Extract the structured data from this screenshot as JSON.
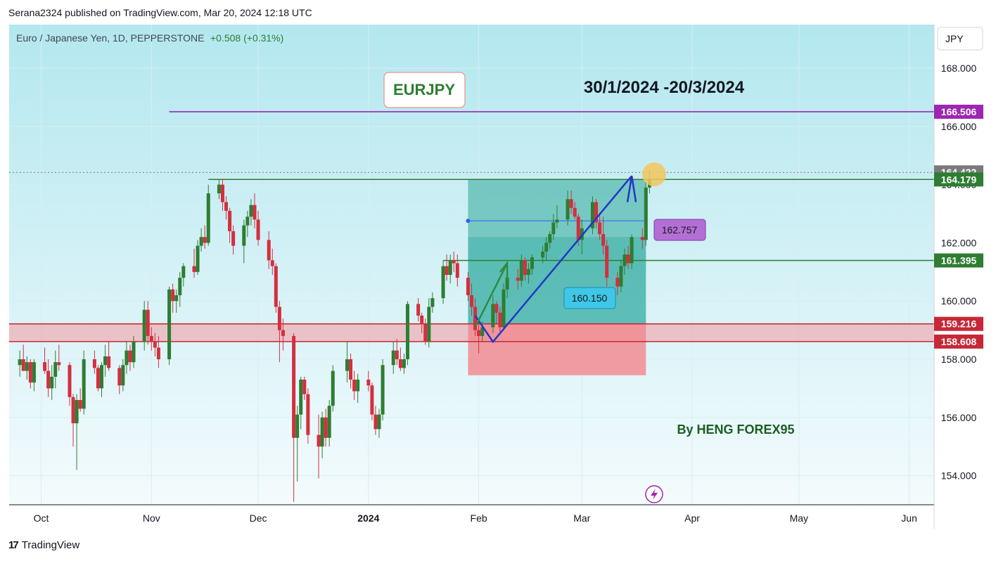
{
  "header": {
    "published": "Serana2324 published on TradingView.com, Mar 20, 2024 12:18 UTC"
  },
  "chart_header": {
    "symbol": "Euro / Japanese Yen, 1D, PEPPERSTONE",
    "change": "+0.508 (+0.31%)"
  },
  "currency_button": "JPY",
  "annotations": {
    "pair_label": "EURJPY",
    "date_range": "30/1/2024 -20/3/2024",
    "author": "By HENG FOREX95",
    "price_mid": "162.757",
    "price_entry": "160.150"
  },
  "footer": {
    "brand": "TradingView"
  },
  "colors": {
    "up": "#2e7d32",
    "down": "#d32f3f",
    "target_zone": "#26a69a",
    "stop_zone": "#f28b93",
    "resistance": "#9c27b0",
    "support_line": "#2e7d32",
    "supply_band": "#c62838",
    "arrow": "#2235c9"
  },
  "chart_data": {
    "type": "candlestick",
    "title": "Euro / Japanese Yen, 1D, PEPPERSTONE",
    "ylim": [
      153,
      169.5
    ],
    "y_ticks": [
      154,
      156,
      158,
      160,
      162,
      164,
      166,
      168
    ],
    "y_tick_labels": [
      "154.000",
      "156.000",
      "158.000",
      "160.000",
      "162.000",
      "164.000",
      "166.000",
      "168.000"
    ],
    "x_tick_labels": [
      "Oct",
      "Nov",
      "Dec",
      "2024",
      "Feb",
      "Mar",
      "Apr",
      "May",
      "Jun"
    ],
    "x_tick_dates": [
      "2023-10-01",
      "2023-11-01",
      "2023-12-01",
      "2024-01-01",
      "2024-02-01",
      "2024-03-01",
      "2024-04-01",
      "2024-05-01",
      "2024-06-01"
    ],
    "levels": [
      {
        "price": 166.506,
        "label": "166.506",
        "color": "#9c27b0"
      },
      {
        "price": 164.422,
        "label": "164.422",
        "color": "#7a7a7a"
      },
      {
        "price": 164.179,
        "label": "164.179",
        "color": "#2e7d32"
      },
      {
        "price": 161.395,
        "label": "161.395",
        "color": "#2e7d32"
      },
      {
        "price": 159.216,
        "label": "159.216",
        "color": "#c62838"
      },
      {
        "price": 158.608,
        "label": "158.608",
        "color": "#c62838"
      }
    ],
    "candles": [
      [
        "2023-09-25",
        157.8,
        158.3,
        157.4,
        158.0
      ],
      [
        "2023-09-26",
        158.0,
        158.5,
        157.6,
        157.6
      ],
      [
        "2023-09-27",
        157.6,
        158.1,
        157.3,
        157.9
      ],
      [
        "2023-09-28",
        157.9,
        158.0,
        157.0,
        157.2
      ],
      [
        "2023-09-29",
        157.2,
        158.0,
        156.9,
        157.9
      ],
      [
        "2023-10-02",
        157.9,
        158.4,
        157.5,
        157.6
      ],
      [
        "2023-10-03",
        157.6,
        158.0,
        156.7,
        157.0
      ],
      [
        "2023-10-04",
        157.0,
        157.8,
        156.6,
        157.4
      ],
      [
        "2023-10-05",
        157.4,
        158.3,
        157.0,
        157.9
      ],
      [
        "2023-10-06",
        157.9,
        158.5,
        157.6,
        157.8
      ],
      [
        "2023-10-09",
        157.8,
        157.9,
        156.4,
        156.7
      ],
      [
        "2023-10-10",
        156.7,
        156.8,
        155.0,
        155.8
      ],
      [
        "2023-10-11",
        155.8,
        156.8,
        154.2,
        156.6
      ],
      [
        "2023-10-12",
        156.6,
        157.0,
        156.2,
        156.3
      ],
      [
        "2023-10-13",
        156.3,
        158.3,
        156.1,
        158.0
      ],
      [
        "2023-10-16",
        158.0,
        158.3,
        157.5,
        157.7
      ],
      [
        "2023-10-17",
        157.7,
        157.8,
        156.9,
        157.0
      ],
      [
        "2023-10-18",
        157.0,
        157.9,
        156.7,
        157.8
      ],
      [
        "2023-10-19",
        157.8,
        158.5,
        157.4,
        158.1
      ],
      [
        "2023-10-20",
        158.1,
        158.6,
        157.6,
        157.7
      ],
      [
        "2023-10-23",
        157.7,
        157.8,
        156.8,
        157.1
      ],
      [
        "2023-10-24",
        157.1,
        158.0,
        156.9,
        157.8
      ],
      [
        "2023-10-25",
        157.8,
        158.6,
        157.5,
        158.3
      ],
      [
        "2023-10-26",
        158.3,
        158.5,
        157.6,
        157.9
      ],
      [
        "2023-10-27",
        157.9,
        158.8,
        157.7,
        158.6
      ],
      [
        "2023-10-30",
        158.6,
        160.0,
        158.3,
        159.7
      ],
      [
        "2023-10-31",
        159.7,
        160.0,
        158.5,
        158.8
      ],
      [
        "2023-11-01",
        158.8,
        159.1,
        158.3,
        158.6
      ],
      [
        "2023-11-02",
        158.6,
        158.9,
        158.1,
        158.4
      ],
      [
        "2023-11-03",
        158.4,
        158.8,
        157.7,
        158.0
      ],
      [
        "2023-11-06",
        158.0,
        160.5,
        157.8,
        160.4
      ],
      [
        "2023-11-07",
        160.4,
        160.6,
        159.6,
        160.0
      ],
      [
        "2023-11-08",
        160.0,
        160.4,
        159.6,
        160.2
      ],
      [
        "2023-11-09",
        160.2,
        161.0,
        159.8,
        160.8
      ],
      [
        "2023-11-10",
        160.8,
        161.3,
        160.5,
        161.2
      ],
      [
        "2023-11-13",
        161.2,
        161.8,
        160.8,
        161.0
      ],
      [
        "2023-11-14",
        161.0,
        162.1,
        160.9,
        161.9
      ],
      [
        "2023-11-15",
        161.9,
        162.5,
        161.7,
        162.2
      ],
      [
        "2023-11-16",
        162.2,
        162.6,
        161.8,
        162.0
      ],
      [
        "2023-11-17",
        162.0,
        164.0,
        161.9,
        163.7
      ],
      [
        "2023-11-20",
        163.7,
        164.2,
        163.5,
        164.0
      ],
      [
        "2023-11-21",
        164.0,
        164.2,
        163.1,
        163.4
      ],
      [
        "2023-11-22",
        163.4,
        163.6,
        162.8,
        163.1
      ],
      [
        "2023-11-23",
        163.1,
        163.2,
        162.0,
        162.4
      ],
      [
        "2023-11-24",
        162.4,
        162.6,
        161.6,
        161.9
      ],
      [
        "2023-11-27",
        161.9,
        162.8,
        161.3,
        162.6
      ],
      [
        "2023-11-28",
        162.6,
        163.1,
        162.2,
        162.9
      ],
      [
        "2023-11-29",
        162.9,
        163.5,
        162.6,
        163.3
      ],
      [
        "2023-11-30",
        163.3,
        163.7,
        162.5,
        162.8
      ],
      [
        "2023-12-01",
        162.8,
        163.1,
        161.9,
        162.1
      ],
      [
        "2023-12-04",
        162.1,
        162.4,
        161.1,
        161.4
      ],
      [
        "2023-12-05",
        161.4,
        161.8,
        160.9,
        161.2
      ],
      [
        "2023-12-06",
        161.2,
        161.3,
        159.6,
        159.8
      ],
      [
        "2023-12-07",
        159.8,
        160.0,
        157.9,
        159.0
      ],
      [
        "2023-12-08",
        159.0,
        159.4,
        158.3,
        158.8
      ],
      [
        "2023-12-11",
        158.8,
        158.9,
        153.1,
        155.3
      ],
      [
        "2023-12-12",
        155.3,
        156.4,
        153.8,
        156.1
      ],
      [
        "2023-12-13",
        156.1,
        157.4,
        155.6,
        157.3
      ],
      [
        "2023-12-14",
        157.3,
        157.4,
        156.6,
        156.8
      ],
      [
        "2023-12-15",
        156.8,
        157.0,
        155.1,
        155.4
      ],
      [
        "2023-12-18",
        155.4,
        156.1,
        153.9,
        155.0
      ],
      [
        "2023-12-19",
        155.0,
        156.2,
        154.6,
        156.0
      ],
      [
        "2023-12-20",
        156.0,
        156.3,
        155.0,
        155.3
      ],
      [
        "2023-12-21",
        155.3,
        156.6,
        155.0,
        156.4
      ],
      [
        "2023-12-22",
        156.4,
        157.8,
        156.2,
        157.6
      ],
      [
        "2023-12-26",
        157.6,
        158.6,
        157.2,
        158.0
      ],
      [
        "2023-12-27",
        158.0,
        158.2,
        157.0,
        157.3
      ],
      [
        "2023-12-28",
        157.3,
        157.6,
        156.6,
        156.9
      ],
      [
        "2023-12-29",
        156.9,
        157.5,
        156.5,
        157.3
      ],
      [
        "2024-01-01",
        157.3,
        157.6,
        156.9,
        157.1
      ],
      [
        "2024-01-02",
        157.1,
        157.2,
        155.9,
        156.1
      ],
      [
        "2024-01-03",
        156.1,
        156.4,
        155.4,
        155.6
      ],
      [
        "2024-01-04",
        155.6,
        156.3,
        155.3,
        156.1
      ],
      [
        "2024-01-05",
        156.1,
        158.0,
        155.9,
        157.8
      ],
      [
        "2024-01-08",
        157.8,
        158.6,
        157.5,
        158.3
      ],
      [
        "2024-01-09",
        158.3,
        158.7,
        157.8,
        158.0
      ],
      [
        "2024-01-10",
        158.0,
        158.4,
        157.6,
        157.7
      ],
      [
        "2024-01-11",
        157.7,
        158.2,
        157.5,
        158.0
      ],
      [
        "2024-01-12",
        158.0,
        160.0,
        157.8,
        159.9
      ],
      [
        "2024-01-15",
        159.9,
        160.1,
        159.3,
        159.5
      ],
      [
        "2024-01-16",
        159.5,
        159.6,
        158.9,
        159.2
      ],
      [
        "2024-01-17",
        159.2,
        159.4,
        158.5,
        158.6
      ],
      [
        "2024-01-18",
        158.6,
        160.1,
        158.4,
        159.8
      ],
      [
        "2024-01-19",
        159.8,
        160.3,
        159.6,
        160.1
      ],
      [
        "2024-01-22",
        160.1,
        161.4,
        159.9,
        161.2
      ],
      [
        "2024-01-23",
        161.2,
        161.6,
        160.7,
        160.9
      ],
      [
        "2024-01-24",
        160.9,
        161.6,
        160.6,
        161.4
      ],
      [
        "2024-01-25",
        161.4,
        161.7,
        161.0,
        161.3
      ],
      [
        "2024-01-26",
        161.3,
        161.6,
        160.5,
        160.8
      ],
      [
        "2024-01-29",
        160.8,
        161.0,
        160.0,
        160.2
      ],
      [
        "2024-01-30",
        160.2,
        160.6,
        159.5,
        159.8
      ],
      [
        "2024-01-31",
        159.8,
        160.1,
        158.8,
        159.0
      ],
      [
        "2024-02-01",
        159.0,
        159.4,
        158.2,
        158.8
      ],
      [
        "2024-02-02",
        158.8,
        159.3,
        158.6,
        159.1
      ],
      [
        "2024-02-05",
        159.1,
        160.2,
        158.9,
        159.9
      ],
      [
        "2024-02-06",
        159.9,
        160.0,
        159.2,
        159.6
      ],
      [
        "2024-02-07",
        159.6,
        159.8,
        158.9,
        159.1
      ],
      [
        "2024-02-08",
        159.1,
        160.6,
        159.0,
        160.4
      ],
      [
        "2024-02-09",
        160.4,
        161.0,
        160.1,
        160.8
      ],
      [
        "2024-02-12",
        160.8,
        161.1,
        160.4,
        160.7
      ],
      [
        "2024-02-13",
        160.7,
        161.6,
        160.5,
        161.4
      ],
      [
        "2024-02-14",
        161.4,
        161.5,
        160.7,
        160.9
      ],
      [
        "2024-02-15",
        160.9,
        161.3,
        160.6,
        161.1
      ],
      [
        "2024-02-16",
        161.1,
        161.6,
        160.9,
        161.5
      ],
      [
        "2024-02-19",
        161.5,
        161.9,
        161.3,
        161.7
      ],
      [
        "2024-02-20",
        161.7,
        162.2,
        161.4,
        162.0
      ],
      [
        "2024-02-21",
        162.0,
        162.4,
        161.8,
        162.3
      ],
      [
        "2024-02-22",
        162.3,
        163.0,
        162.1,
        162.7
      ],
      [
        "2024-02-23",
        162.7,
        163.3,
        162.5,
        162.8
      ],
      [
        "2024-02-26",
        162.8,
        163.8,
        162.6,
        163.5
      ],
      [
        "2024-02-27",
        163.5,
        163.8,
        163.0,
        163.2
      ],
      [
        "2024-02-28",
        163.2,
        163.4,
        162.8,
        162.9
      ],
      [
        "2024-02-29",
        162.9,
        163.0,
        161.9,
        162.1
      ],
      [
        "2024-03-01",
        162.1,
        162.8,
        161.6,
        162.5
      ],
      [
        "2024-03-04",
        162.5,
        163.6,
        162.3,
        163.4
      ],
      [
        "2024-03-05",
        163.4,
        163.5,
        162.5,
        162.7
      ],
      [
        "2024-03-06",
        162.7,
        163.0,
        162.1,
        162.3
      ],
      [
        "2024-03-07",
        162.3,
        162.9,
        161.6,
        161.9
      ],
      [
        "2024-03-08",
        161.9,
        162.1,
        160.5,
        160.8
      ],
      [
        "2024-03-11",
        160.8,
        161.0,
        160.2,
        160.5
      ],
      [
        "2024-03-12",
        160.5,
        161.4,
        160.3,
        161.2
      ],
      [
        "2024-03-13",
        161.2,
        161.8,
        160.9,
        161.6
      ],
      [
        "2024-03-14",
        161.6,
        161.9,
        161.1,
        161.3
      ],
      [
        "2024-03-15",
        161.3,
        162.3,
        161.1,
        162.2
      ],
      [
        "2024-03-18",
        162.2,
        162.5,
        161.8,
        162.1
      ],
      [
        "2024-03-19",
        162.1,
        164.1,
        161.9,
        163.9
      ],
      [
        "2024-03-20",
        163.9,
        164.5,
        163.7,
        164.2
      ]
    ]
  }
}
